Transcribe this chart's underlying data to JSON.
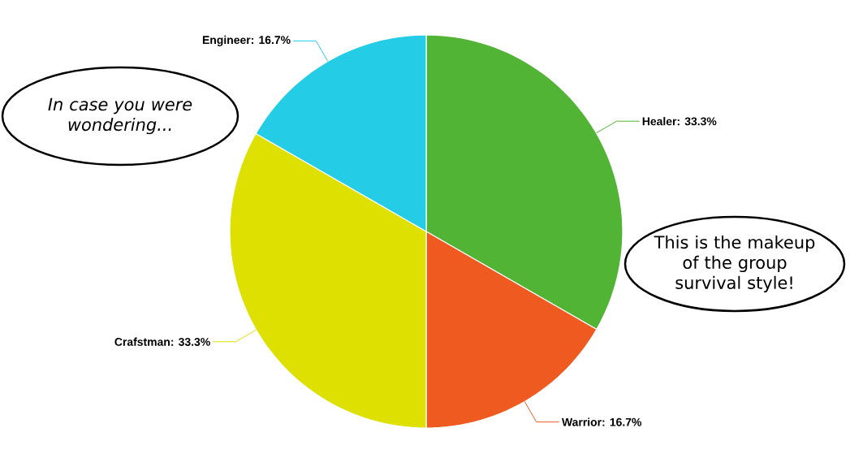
{
  "chart_data": {
    "type": "pie",
    "categories": [
      "Healer",
      "Warrior",
      "Crafstman",
      "Engineer"
    ],
    "values": [
      33.3,
      16.7,
      33.3,
      16.7
    ],
    "value_labels": [
      ": 33.3%",
      ": 16.7%",
      ": 33.3%",
      ": 16.7%"
    ],
    "colors": [
      "#52b435",
      "#ee5a1f",
      "#dde000",
      "#25cce6"
    ],
    "annotations": [
      "In case you were wondering...",
      "This is the makeup of the group survival style!"
    ]
  }
}
